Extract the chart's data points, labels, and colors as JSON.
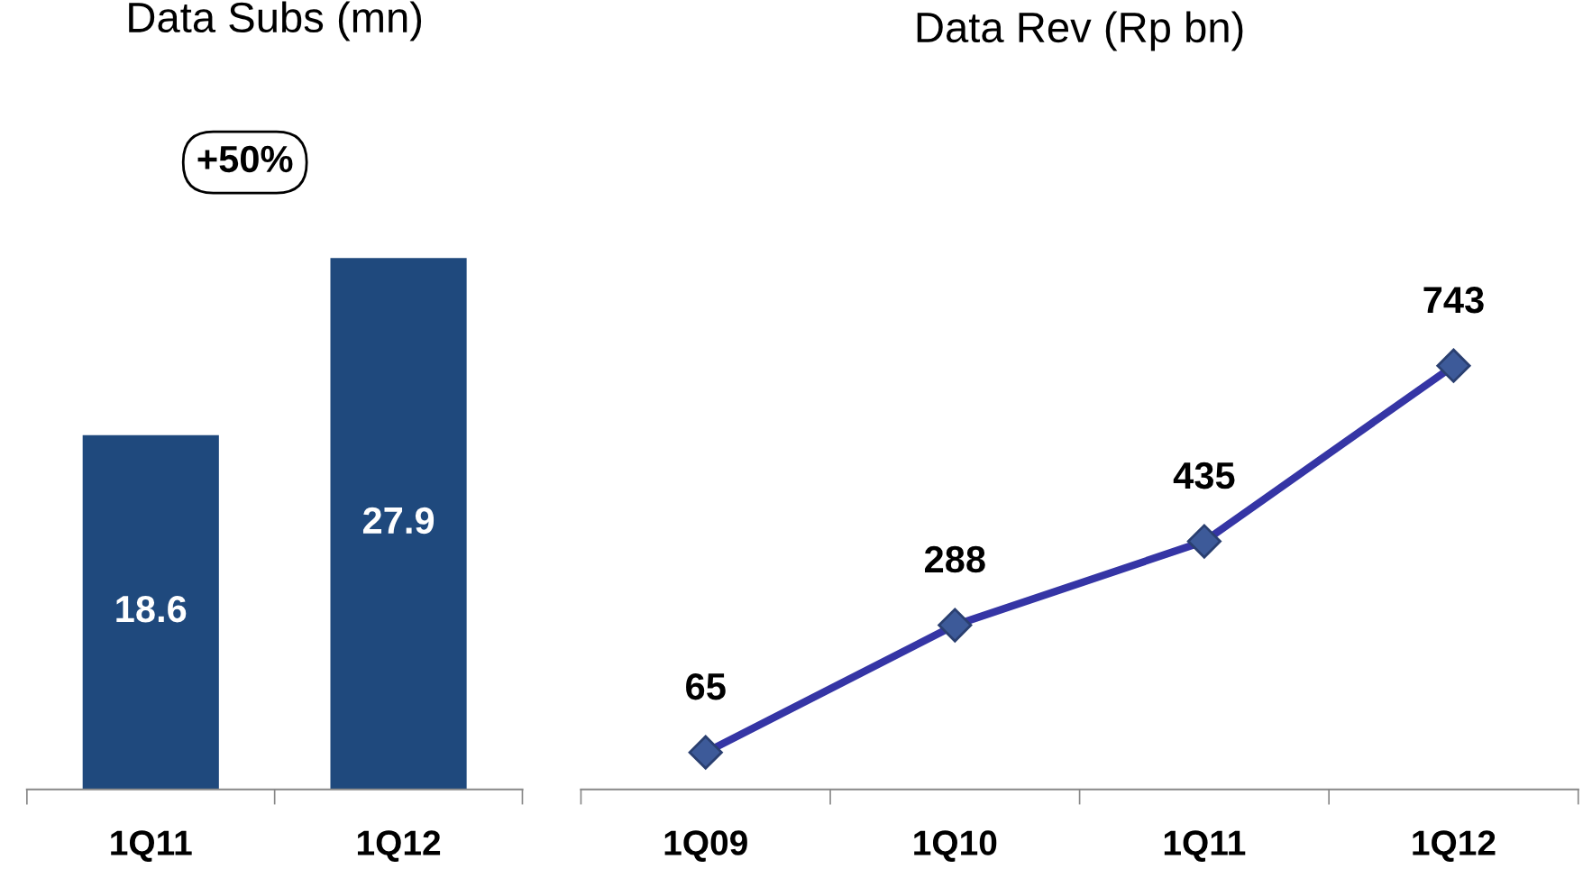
{
  "chart_data": [
    {
      "type": "bar",
      "title": "Data Subs (mn)",
      "categories": [
        "1Q11",
        "1Q12"
      ],
      "values": [
        18.6,
        27.9
      ],
      "color": "#1f497d",
      "data_labels": true,
      "annotations": [
        "+50%"
      ],
      "tick_labels": "x",
      "grid": false,
      "legend": false
    },
    {
      "type": "line",
      "title": "Data Rev (Rp bn)",
      "categories": [
        "1Q09",
        "1Q10",
        "1Q11",
        "1Q12"
      ],
      "series": [
        {
          "color": "#3535a5",
          "values": [
            65,
            288,
            435,
            743
          ]
        }
      ],
      "marker": "diamond",
      "line_style": "solid",
      "data_labels": true,
      "tick_labels": "x",
      "grid": false,
      "legend": false
    }
  ]
}
